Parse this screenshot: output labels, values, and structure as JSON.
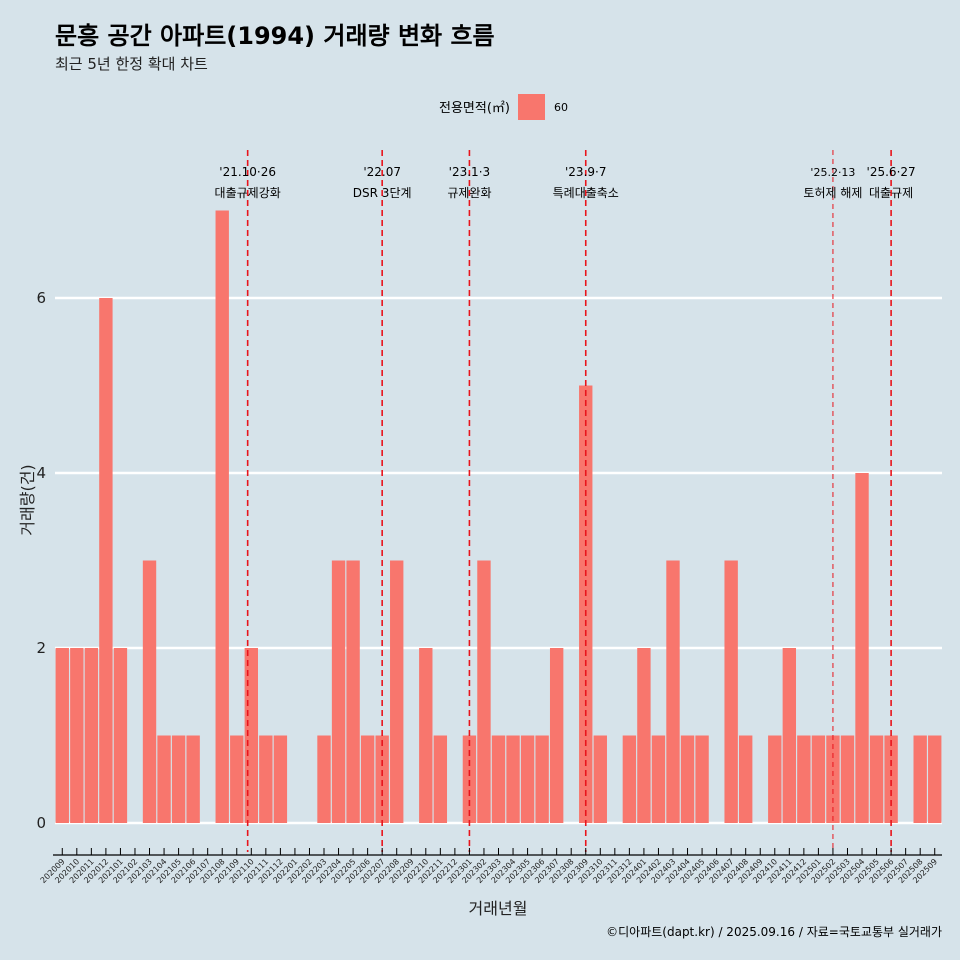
{
  "title": "문흥 공간 아파트(1994) 거래량 변화 흐름",
  "subtitle": "최근 5년 한정 확대 차트",
  "legend": {
    "title": "전용면적(㎡)",
    "label": "60",
    "color": "#f8766d"
  },
  "caption": "©디아파트(dapt.kr) / 2025.09.16 / 자료=국토교통부 실거래가",
  "chart_data": {
    "type": "bar",
    "title": "문흥 공간 아파트(1994) 거래량 변화 흐름",
    "xlabel": "거래년월",
    "ylabel": "거래량(건)",
    "ylim": [
      -0.35,
      7.7
    ],
    "yticks": [
      0,
      2,
      4,
      6
    ],
    "grid": true,
    "legend_position": "top",
    "bar_color": "#f8766d",
    "background": "#d6e3ea",
    "categories": [
      "202009",
      "202010",
      "202011",
      "202012",
      "202101",
      "202102",
      "202103",
      "202104",
      "202105",
      "202106",
      "202107",
      "202108",
      "202109",
      "202110",
      "202111",
      "202112",
      "202201",
      "202202",
      "202203",
      "202204",
      "202205",
      "202206",
      "202207",
      "202208",
      "202209",
      "202210",
      "202211",
      "202212",
      "202301",
      "202302",
      "202303",
      "202304",
      "202305",
      "202306",
      "202307",
      "202308",
      "202309",
      "202310",
      "202311",
      "202312",
      "202401",
      "202402",
      "202403",
      "202404",
      "202405",
      "202406",
      "202407",
      "202408",
      "202409",
      "202410",
      "202411",
      "202412",
      "202501",
      "202502",
      "202503",
      "202504",
      "202505",
      "202506",
      "202507",
      "202508",
      "202509"
    ],
    "series": [
      {
        "name": "60",
        "values": [
          2,
          2,
          2,
          6,
          2,
          0,
          3,
          1,
          1,
          1,
          0,
          7,
          1,
          2,
          1,
          1,
          0,
          0,
          1,
          3,
          3,
          1,
          1,
          3,
          0,
          2,
          1,
          0,
          1,
          3,
          1,
          1,
          1,
          1,
          2,
          0,
          5,
          1,
          0,
          1,
          2,
          1,
          3,
          1,
          1,
          0,
          3,
          1,
          0,
          1,
          2,
          1,
          1,
          1,
          1,
          4,
          1,
          1,
          0,
          1,
          1
        ]
      }
    ],
    "annotations": [
      {
        "date": "'21.10·26",
        "text": "대출규제강화",
        "x": "202110",
        "offset": -0.25,
        "style": "dashed"
      },
      {
        "date": "'22.07",
        "text": "DSR 3단계",
        "x": "202207",
        "offset": 0.0,
        "style": "dashed"
      },
      {
        "date": "'23.1·3",
        "text": "규제완화",
        "x": "202301",
        "offset": 0.0,
        "style": "dashed"
      },
      {
        "date": "'23.9·7",
        "text": "특례대출축소",
        "x": "202309",
        "offset": 0.0,
        "style": "dashed"
      },
      {
        "date": "'25.2·13",
        "text": "토허제 해제",
        "x": "202502",
        "offset": 0.0,
        "style": "thin-dashed"
      },
      {
        "date": "'25.6·27",
        "text": "대출규제",
        "x": "202506",
        "offset": 0.0,
        "style": "dashed"
      }
    ]
  }
}
